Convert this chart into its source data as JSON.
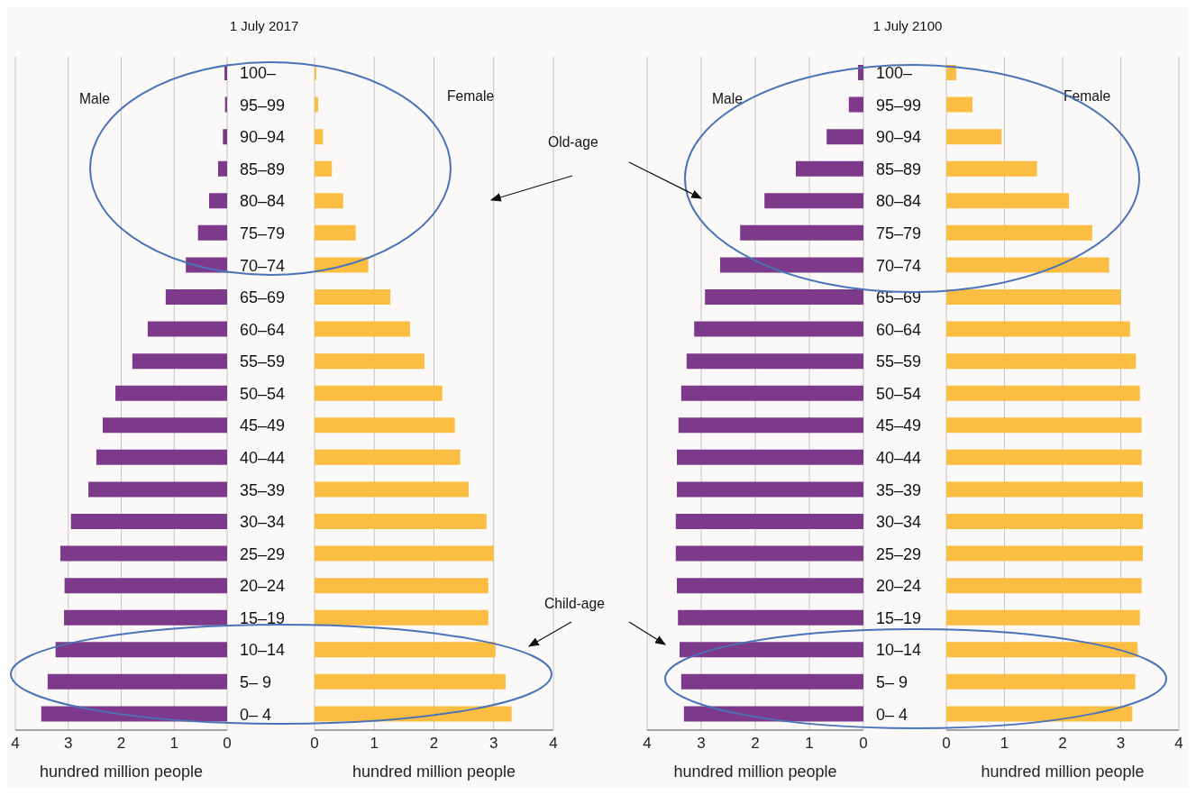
{
  "chart_data": [
    {
      "type": "bar",
      "orientation": "horizontal",
      "title": "1 July 2017",
      "xlabel": "hundred million people",
      "annotations": [
        "Male"
      ],
      "categories": [
        "100–",
        "95–99",
        "90–94",
        "85–89",
        "80–84",
        "75–79",
        "70–74",
        "65–69",
        "60–64",
        "55–59",
        "50–54",
        "45–49",
        "40–44",
        "35–39",
        "30–34",
        "25–29",
        "20–24",
        "15–19",
        "10–14",
        "5– 9",
        "0– 4"
      ],
      "series": [
        {
          "color": "#7d3a8a",
          "values": [
            0.05,
            0.04,
            0.08,
            0.17,
            0.34,
            0.55,
            0.78,
            1.16,
            1.5,
            1.79,
            2.11,
            2.35,
            2.47,
            2.62,
            2.95,
            3.15,
            3.07,
            3.08,
            3.24,
            3.39,
            3.51
          ]
        }
      ],
      "xlim": [
        4,
        0
      ],
      "xticks": [
        4,
        3,
        2,
        1,
        0
      ],
      "grid": "x"
    },
    {
      "type": "bar",
      "orientation": "horizontal",
      "xlabel": "hundred million people",
      "annotations": [
        "Female",
        "Old-age",
        "Child-age"
      ],
      "categories": [
        null,
        null,
        null,
        null,
        null,
        null,
        null,
        null,
        null,
        null,
        null,
        null,
        null,
        null,
        null,
        null,
        null,
        null,
        null,
        null,
        null
      ],
      "series": [
        {
          "color": "#fbbd42",
          "values": [
            0.03,
            0.06,
            0.14,
            0.29,
            0.48,
            0.69,
            0.9,
            1.27,
            1.6,
            1.84,
            2.14,
            2.35,
            2.44,
            2.58,
            2.88,
            3.0,
            2.91,
            2.91,
            3.03,
            3.2,
            3.3
          ]
        }
      ],
      "xlim": [
        0,
        4
      ],
      "xticks": [
        0,
        1,
        2,
        3,
        4
      ],
      "grid": "x"
    },
    {
      "type": "bar",
      "orientation": "horizontal",
      "title": "1 July 2100",
      "xlabel": "hundred million people",
      "annotations": [
        "Male"
      ],
      "categories": [
        "100–",
        "95–99",
        "90–94",
        "85–89",
        "80–84",
        "75–79",
        "70–74",
        "65–69",
        "60–64",
        "55–59",
        "50–54",
        "45–49",
        "40–44",
        "35–39",
        "30–34",
        "25–29",
        "20–24",
        "15–19",
        "10–14",
        "5– 9",
        "0– 4"
      ],
      "series": [
        {
          "color": "#7d3a8a",
          "values": [
            0.1,
            0.27,
            0.68,
            1.25,
            1.83,
            2.28,
            2.65,
            2.93,
            3.13,
            3.27,
            3.37,
            3.42,
            3.45,
            3.45,
            3.47,
            3.47,
            3.45,
            3.43,
            3.4,
            3.37,
            3.32
          ]
        }
      ],
      "xlim": [
        4,
        0
      ],
      "xticks": [
        4,
        3,
        2,
        1,
        0
      ],
      "grid": "x"
    },
    {
      "type": "bar",
      "orientation": "horizontal",
      "xlabel": "hundred million people",
      "annotations": [
        "Female"
      ],
      "categories": [
        null,
        null,
        null,
        null,
        null,
        null,
        null,
        null,
        null,
        null,
        null,
        null,
        null,
        null,
        null,
        null,
        null,
        null,
        null,
        null,
        null
      ],
      "series": [
        {
          "color": "#fbbd42",
          "values": [
            0.17,
            0.45,
            0.95,
            1.56,
            2.11,
            2.51,
            2.8,
            3.0,
            3.16,
            3.26,
            3.33,
            3.36,
            3.36,
            3.38,
            3.38,
            3.38,
            3.36,
            3.33,
            3.29,
            3.25,
            3.2
          ]
        }
      ],
      "xlim": [
        0,
        4
      ],
      "xticks": [
        0,
        1,
        2,
        3,
        4
      ],
      "grid": "x"
    }
  ]
}
